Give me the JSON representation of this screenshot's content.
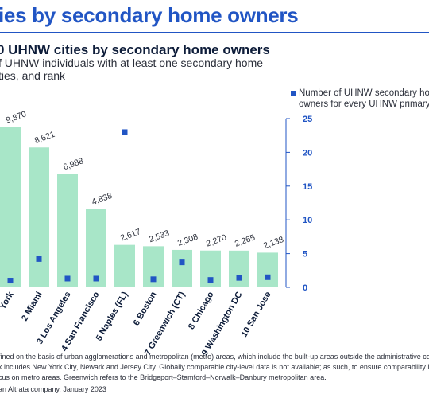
{
  "page": {
    "title": "ies by secondary home owners",
    "chart_title": "0 UHNW cities by secondary home owners",
    "subtitle_line1": "f UHNW individuals with at least one secondary home",
    "subtitle_line2": "ties, and rank",
    "footnote_line1": "fined on the basis of urban agglomerations and metropolitan (metro) areas, which include the built-up areas outside the administrative co",
    "footnote_line2": "k includes New York City, Newark and Jersey City. Globally comparable city-level data is not available; as such, to ensure comparability is as",
    "footnote_line3": "cus on metro areas. Greenwich refers to the Bridgeport–Stamford–Norwalk–Danbury metropolitan area.",
    "source_line": "an Altrata company, January 2023"
  },
  "legend": {
    "line1": "Number of UHNW secondary ho",
    "line2": "owners for every UHNW primary"
  },
  "colors": {
    "bar": "#a8e6c8",
    "marker": "#2155c4",
    "title": "#2155c4",
    "text": "#0e1d3a",
    "axis": "#2155c4"
  },
  "chart_data": {
    "type": "bar",
    "categories": [
      "York",
      "2 Miami",
      "3 Los Angeles",
      "4 San Francisco",
      "5 Naples (FL)",
      "6 Boston",
      "7 Greenwich (CT)",
      "8 Chicago",
      "9 Washington DC",
      "10 San Jose"
    ],
    "series": [
      {
        "type": "bar",
        "values": [
          9870,
          8621,
          6988,
          4838,
          2617,
          2533,
          2308,
          2270,
          2265,
          2138
        ]
      },
      {
        "type": "scatter",
        "axis": "right",
        "values": [
          1.0,
          4.2,
          1.3,
          1.3,
          23.0,
          1.2,
          3.7,
          1.1,
          1.4,
          1.5
        ]
      }
    ],
    "value_labels": [
      "9,870",
      "8,621",
      "6,988",
      "4,838",
      "2,617",
      "2,533",
      "2,308",
      "2,270",
      "2,265",
      "2,138"
    ],
    "right_axis": {
      "ticks": [
        "0",
        "5",
        "10",
        "15",
        "20",
        "25"
      ],
      "ylim": [
        0,
        25
      ]
    },
    "left_ylim": [
      0,
      10400
    ]
  }
}
